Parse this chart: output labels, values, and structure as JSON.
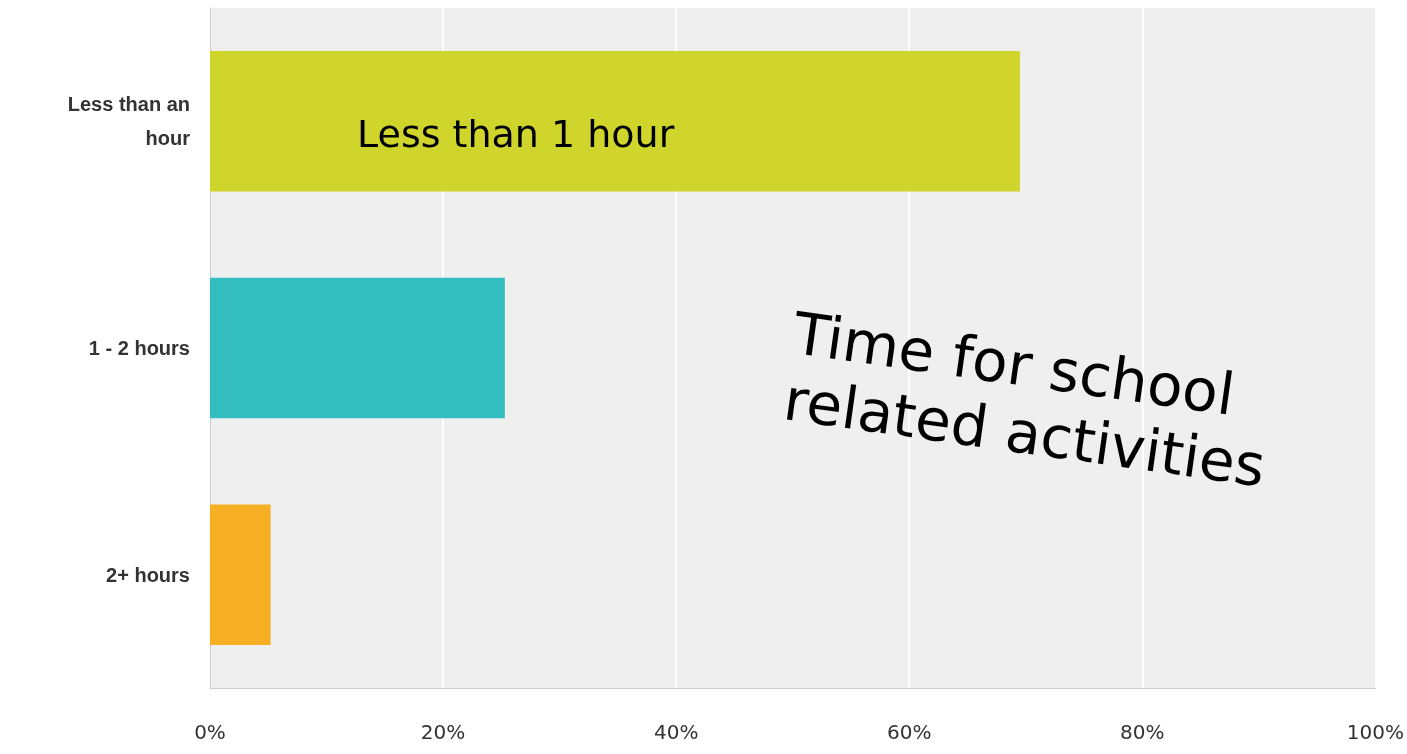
{
  "chart_data": {
    "type": "bar",
    "orientation": "horizontal",
    "categories": [
      "Less than an\nhour",
      "1 - 2 hours",
      "2+ hours"
    ],
    "values": [
      69.5,
      25.3,
      5.2
    ],
    "colors": [
      "#cfd52a",
      "#33bdbf",
      "#f6ae22"
    ],
    "xlim": [
      0,
      100
    ],
    "xticks": [
      {
        "value": 0,
        "label": "0%"
      },
      {
        "value": 20,
        "label": "20%"
      },
      {
        "value": 40,
        "label": "40%"
      },
      {
        "value": 60,
        "label": "60%"
      },
      {
        "value": 80,
        "label": "80%"
      },
      {
        "value": 100,
        "label": "100%"
      }
    ],
    "grid": "x",
    "annotations": [
      "Less than 1 hour",
      "Time for school\nrelated activities"
    ]
  }
}
